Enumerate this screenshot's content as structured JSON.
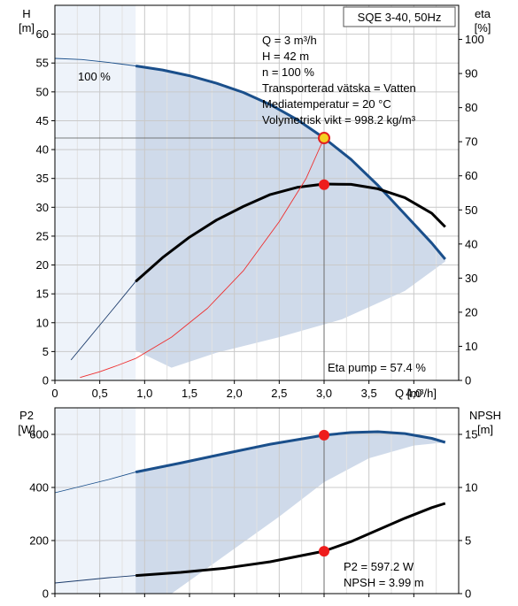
{
  "chart_data": [
    {
      "type": "line",
      "title": "SQE 3-40, 50Hz",
      "xlabel": "Q [m³/h]",
      "ylabel": "H\n[m]",
      "ylabel_right": "eta\n[%]",
      "xlim": [
        0,
        4.5
      ],
      "ylim": [
        0,
        65
      ],
      "ylim_right": [
        0,
        110
      ],
      "x_ticks": [
        0,
        0.5,
        1.0,
        1.5,
        2.0,
        2.5,
        3.0,
        3.5,
        4.0
      ],
      "x_tick_labels": [
        "0",
        "0,5",
        "1,0",
        "1,5",
        "2,0",
        "2,5",
        "3,0",
        "3,5",
        "4,0"
      ],
      "y_ticks": [
        0,
        5,
        10,
        15,
        20,
        25,
        30,
        35,
        40,
        45,
        50,
        55,
        60
      ],
      "y_right_ticks": [
        0,
        10,
        20,
        30,
        40,
        50,
        60,
        70,
        80,
        90,
        100
      ],
      "grid": true,
      "info_lines": [
        "Q = 3 m³/h",
        "H = 42 m",
        "n = 100 %",
        "Transporterad vätska = Vatten",
        "Mediatemperatur = 20 °C",
        "Volymetrisk vikt = 998.2 kg/m³"
      ],
      "curve_label": "100 %",
      "eta_pump_label": "Eta pump = 57.4 %",
      "series": [
        {
          "axis": "left",
          "color": "#1a4f8b",
          "x": [
            0.9,
            1.2,
            1.5,
            1.8,
            2.1,
            2.4,
            2.7,
            3.0,
            3.3,
            3.6,
            3.9,
            4.2,
            4.35
          ],
          "y": [
            54.5,
            53.8,
            52.8,
            51.5,
            49.9,
            47.8,
            45.2,
            42.0,
            38.3,
            33.8,
            28.8,
            23.8,
            21.0
          ]
        },
        {
          "axis": "right",
          "color": "#000000",
          "x": [
            0.9,
            1.2,
            1.5,
            1.8,
            2.1,
            2.4,
            2.7,
            3.0,
            3.3,
            3.6,
            3.9,
            4.2,
            4.35
          ],
          "y": [
            29,
            36,
            42,
            47,
            51,
            54.5,
            56.6,
            57.6,
            57.5,
            56.2,
            53.6,
            49,
            45
          ]
        },
        {
          "axis": "left",
          "color": "#ee3030",
          "x": [
            0.9,
            1.3,
            1.7,
            2.1,
            2.5,
            2.8,
            3.0
          ],
          "y": [
            3.8,
            7.5,
            12.5,
            19.0,
            27.5,
            35.0,
            42.0
          ]
        }
      ],
      "extension_curves": [
        {
          "axis": "left",
          "color": "#1a4f8b",
          "x": [
            0,
            0.3,
            0.6,
            0.9
          ],
          "y": [
            55.8,
            55.6,
            55.1,
            54.5
          ]
        },
        {
          "axis": "right",
          "color": "#1a3a6a",
          "x": [
            0.18,
            0.4,
            0.65,
            0.9
          ],
          "y": [
            6,
            13,
            21,
            29
          ]
        },
        {
          "axis": "left",
          "color": "#ee3030",
          "x": [
            0.28,
            0.5,
            0.7,
            0.9
          ],
          "y": [
            0.5,
            1.5,
            2.6,
            3.8
          ]
        }
      ],
      "shaded_area": {
        "upper": {
          "x": [
            0.9,
            1.5,
            2.1,
            2.7,
            3.3,
            3.9,
            4.35
          ],
          "y": [
            54.5,
            52.8,
            49.9,
            45.2,
            38.3,
            28.8,
            21.0
          ]
        },
        "lower": {
          "x": [
            0.9,
            1.3,
            1.8,
            2.5,
            3.2,
            3.9,
            4.35
          ],
          "y": [
            5.2,
            2.2,
            4.8,
            7.5,
            10.6,
            15.5,
            20.6
          ]
        }
      },
      "light_area_x": [
        0,
        0.9
      ],
      "operating_point": {
        "x": 3.0,
        "y": 42.0
      },
      "efficiency_point": {
        "x": 3.0,
        "y_right": 57.4
      }
    },
    {
      "type": "line",
      "ylabel": "P2\n[W]",
      "ylabel_right": "NPSH\n[m]",
      "xlim": [
        0,
        4.5
      ],
      "ylim": [
        0,
        700
      ],
      "ylim_right": [
        0,
        17.5
      ],
      "y_ticks": [
        0,
        200,
        400,
        600
      ],
      "y_right_ticks": [
        0,
        5,
        10,
        15
      ],
      "grid": true,
      "p2_label": "P2 = 597.2 W",
      "npsh_label": "NPSH = 3.99 m",
      "series": [
        {
          "axis": "left",
          "color": "#1a4f8b",
          "x": [
            0.9,
            1.4,
            1.9,
            2.4,
            2.7,
            3.0,
            3.3,
            3.6,
            3.9,
            4.2,
            4.35
          ],
          "y": [
            458,
            492,
            528,
            563,
            580,
            597,
            607,
            610,
            603,
            585,
            570
          ]
        },
        {
          "axis": "right",
          "color": "#000000",
          "x": [
            0.9,
            1.4,
            1.9,
            2.4,
            2.7,
            3.0,
            3.3,
            3.6,
            3.9,
            4.2,
            4.35
          ],
          "y": [
            1.7,
            2.0,
            2.4,
            3.0,
            3.5,
            4.0,
            4.9,
            6.0,
            7.1,
            8.1,
            8.5
          ]
        }
      ],
      "extension_curves": [
        {
          "axis": "left",
          "color": "#1a4f8b",
          "x": [
            0,
            0.3,
            0.6,
            0.9
          ],
          "y": [
            380,
            405,
            430,
            458
          ]
        },
        {
          "axis": "right",
          "color": "#1a3a6a",
          "x": [
            0,
            0.3,
            0.6,
            0.9
          ],
          "y": [
            1.0,
            1.25,
            1.5,
            1.7
          ]
        }
      ],
      "shaded_area": {
        "upper": {
          "x": [
            0.9,
            1.4,
            1.9,
            2.4,
            3.0,
            3.6,
            4.2,
            4.35
          ],
          "y": [
            458,
            492,
            528,
            563,
            597,
            610,
            585,
            570
          ]
        },
        "lower": {
          "x": [
            0.9,
            1.3,
            1.9,
            2.5,
            3.0,
            3.5,
            4.0,
            4.35
          ],
          "y": [
            0,
            0,
            145,
            290,
            420,
            510,
            558,
            570
          ]
        }
      },
      "light_area_x": [
        0,
        0.9
      ],
      "p2_point": {
        "x": 3.0,
        "y": 597.2
      },
      "npsh_point": {
        "x": 3.0,
        "y_right": 3.99
      }
    }
  ]
}
